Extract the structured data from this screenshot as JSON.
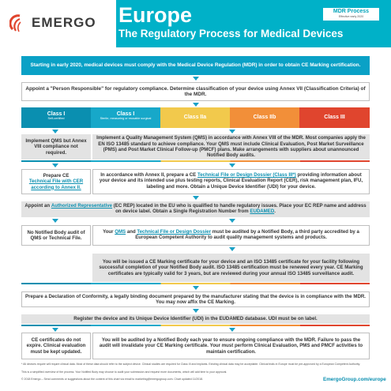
{
  "header": {
    "logo_text": "EMERGO",
    "title": "Europe",
    "subtitle": "The Regulatory Process for Medical Devices",
    "badge_title": "MDR Process",
    "badge_sub": "Effective early 2020"
  },
  "colors": {
    "teal": "#00b1c8",
    "class1": "#0a8fb0",
    "class1s": "#17a8c9",
    "class2a": "#f2c94c",
    "class2b": "#f28f39",
    "class3": "#e0452e"
  },
  "intro": "Starting in early 2020, medical devices must comply with the Medical Device Regulation (MDR) in order to obtain CE Marking certification.",
  "step_appoint": "Appoint a \"Person Responsible\" for regulatory compliance. Determine classification of your device using Annex VII (Classification Criteria) of the MDR.",
  "classes": [
    {
      "title": "Class I",
      "sub": "Self-certified"
    },
    {
      "title": "Class I",
      "sub": "Sterile, measuring or reusable surgical"
    },
    {
      "title": "Class IIa",
      "sub": ""
    },
    {
      "title": "Class IIb",
      "sub": ""
    },
    {
      "title": "Class III",
      "sub": ""
    }
  ],
  "qms": {
    "left": "Implement QMS but Annex VIII compliance not required.",
    "main": "Implement a Quality Management System (QMS) in accordance with Annex VIII of the MDR. Most companies apply the EN ISO 13485 standard to achieve compliance. Your QMS must include Clinical Evaluation, Post Market Surveillance (PMS) and Post Market Clinical Follow-up (PMCF) plans. Make arrangements with suppliers about unannounced Notified Body audits."
  },
  "techfile": {
    "left_pre": "Prepare CE",
    "left_link": "Technical File with CER according to Annex II.",
    "main_pre": "In accordance with Annex II, prepare a CE",
    "main_link": "Technical File or Design Dossier (Class III*)",
    "main_post": "providing information about your device and its intended use plus testing reports, Clinical Evaluation Report (CER), risk management plan, IFU, labeling and more. Obtain a Unique Device Identifier (UDI) for your device."
  },
  "ec_rep": {
    "pre": "Appoint an",
    "link": "Authorized Representative",
    "mid": "(EC REP) located in the EU who is qualified to handle regulatory issues. Place your EC REP name and address on device label. Obtain a Single Registration Number from",
    "link2": "EUDAMED",
    "post": "."
  },
  "audit": {
    "left": "No Notified Body audit of QMS or Technical File.",
    "pre": "Your",
    "link1": "QMS",
    "and": "and",
    "link2": "Technical File or Design Dossier",
    "post": "must be audited by a Notified Body, a third party accredited by a European Competent Authority to audit quality management systems and products."
  },
  "certificate": "You will be issued a CE Marking certificate for your device and an ISO 13485 certificate for your facility following successful completion of your Notified Body audit. ISO 13485 certification must be renewed every year. CE Marking certificates are typically valid for 3 years, but are reviewed during your annual ISO 13485 surveillance audit.",
  "declaration": "Prepare a Declaration of Conformity, a legally binding document prepared by the manufacturer stating that the device is in compliance with the MDR. You may now affix the CE Marking.",
  "register": "Register the device and its Unique Device Identifier (UDI) in the EUDAMED database. UDI must be on label.",
  "annual": {
    "left": "CE certificates do not expire. Clinical evaluation must be kept updated.",
    "main": "You will be audited by a Notified Body each year to ensure ongoing compliance with the MDR. Failure to pass the audit will invalidate your CE Marking certificate. Your must perform Clinical Evaluation, PMS and PMCF activities to maintain certification."
  },
  "footer": {
    "note1": "* All devices require will require clinical data. Most of these data should refer to the subject device. Clinical studies are required for Class III and implants. Existing clinical data may be acceptable. Clinical trials in Europe must be pre-approved by a European Competent Authority.",
    "note2": "This is a simplified overview of the process. Your Notified Body may choose to audit your submission and request more documents, which will add time to your approval.",
    "note3": "© 2018 Emergo – Send comments or suggestions about the content of this chart via email to marketing@emergogroup.com. Chart updated 11/2018.",
    "url": "EmergoGroup.com/europe"
  }
}
